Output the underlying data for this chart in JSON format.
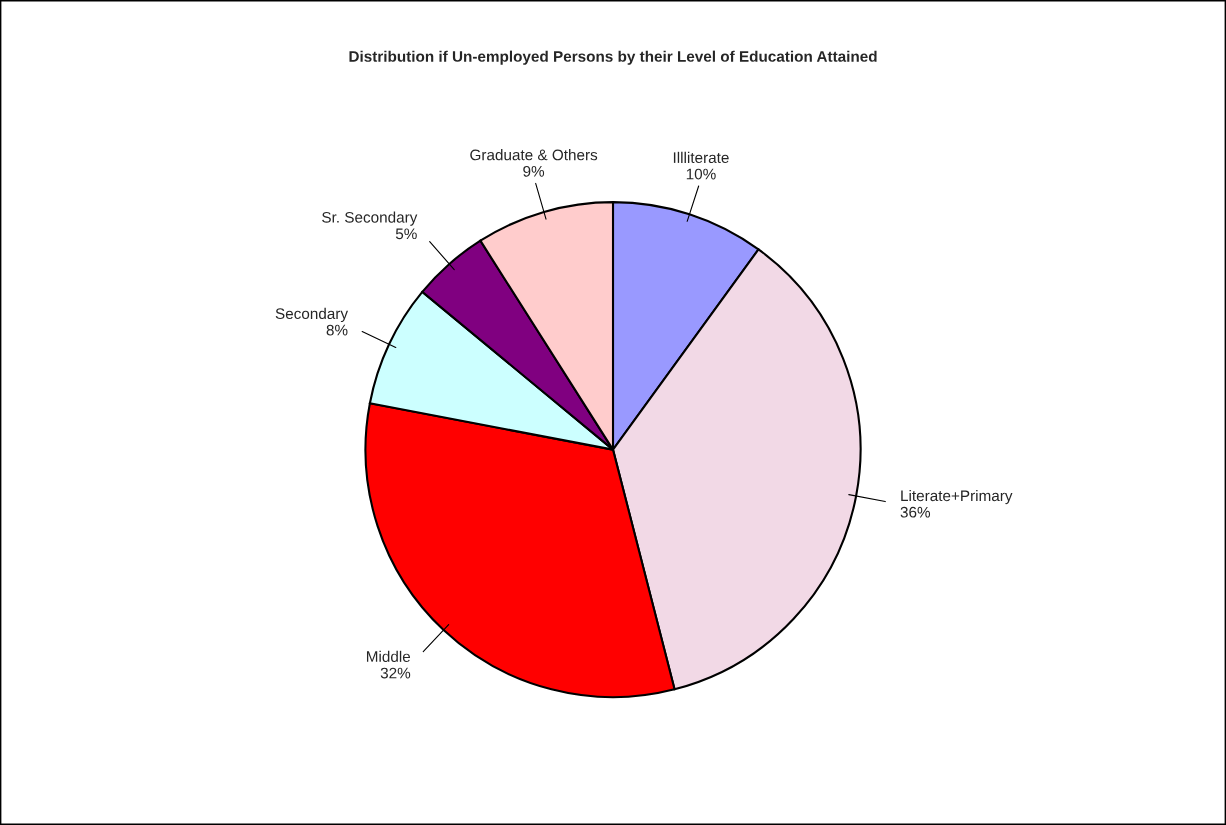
{
  "chart_data": {
    "type": "pie",
    "title": "Distribution if Un-employed Persons by their Level of Education Attained",
    "categories": [
      "Illliterate",
      "Literate+Primary",
      "Middle",
      "Secondary",
      "Sr. Secondary",
      "Graduate & Others"
    ],
    "values": [
      10,
      36,
      32,
      8,
      5,
      9
    ],
    "colors": [
      "#9999ff",
      "#f2d9e6",
      "#ff0000",
      "#ccffff",
      "#800080",
      "#ffcccc"
    ],
    "value_labels": [
      "10%",
      "36%",
      "32%",
      "8%",
      "5%",
      "9%"
    ],
    "legend": false
  }
}
